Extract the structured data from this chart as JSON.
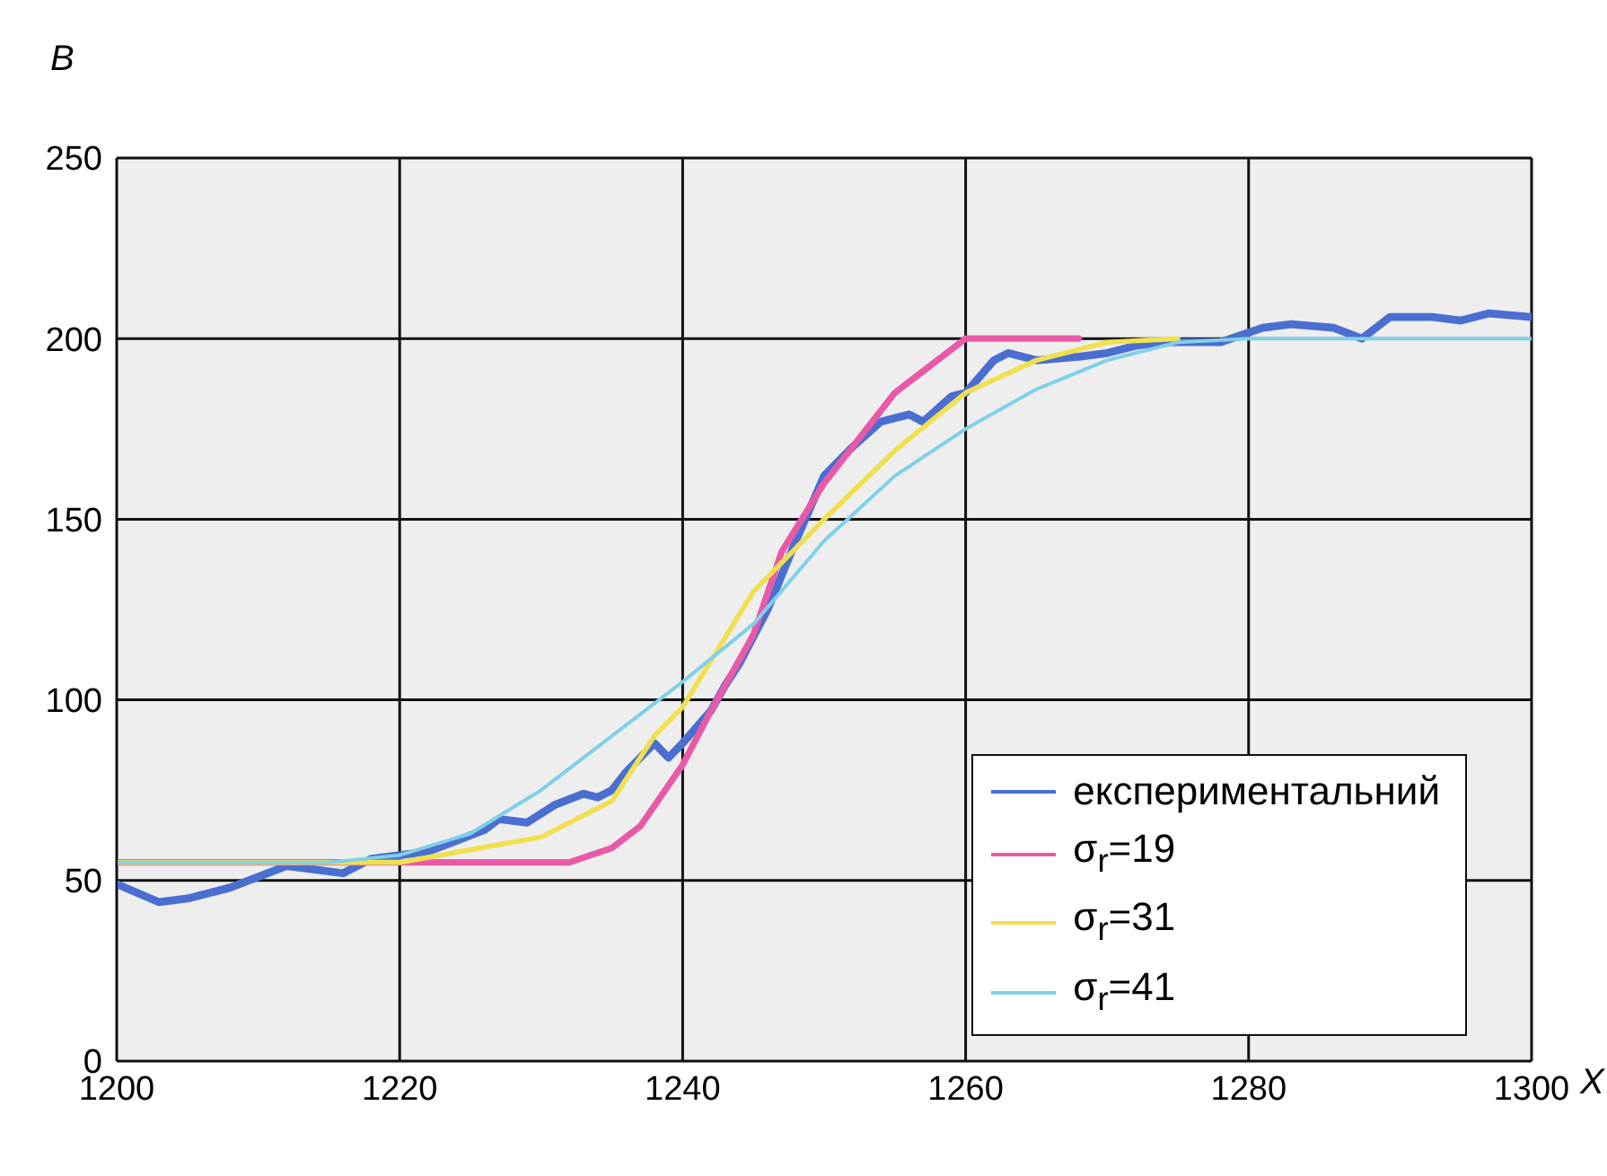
{
  "chart_data": {
    "type": "line",
    "xlabel": "X",
    "ylabel": "B",
    "xlim": [
      1200,
      1300
    ],
    "xticks": [
      1200,
      1220,
      1240,
      1260,
      1280,
      1300
    ],
    "ylim": [
      0,
      250
    ],
    "yticks": [
      0,
      50,
      100,
      150,
      200,
      250
    ],
    "grid": true,
    "legend": "bottom right",
    "line_style": "solid",
    "marker": "none",
    "series": [
      {
        "name": "експериментальний",
        "color": "#4a6fd0",
        "x": [
          1200,
          1203,
          1205,
          1208,
          1212,
          1214,
          1216,
          1218,
          1220,
          1222,
          1224,
          1226,
          1227,
          1229,
          1231,
          1233,
          1234,
          1235,
          1236,
          1237,
          1238,
          1239,
          1240,
          1242,
          1243,
          1244,
          1246,
          1248,
          1250,
          1252,
          1254,
          1256,
          1257,
          1259,
          1260,
          1262,
          1263,
          1265,
          1268,
          1270,
          1272,
          1274,
          1278,
          1281,
          1283,
          1286,
          1288,
          1290,
          1293,
          1295,
          1297,
          1300
        ],
        "values": [
          49,
          44,
          45,
          48,
          54,
          53,
          52,
          56,
          57,
          58,
          61,
          64,
          67,
          66,
          71,
          74,
          73,
          75,
          80,
          84,
          88,
          84,
          88,
          97,
          104,
          110,
          125,
          144,
          162,
          170,
          177,
          179,
          177,
          184,
          185,
          194,
          196,
          194,
          195,
          196,
          198,
          199,
          199,
          203,
          204,
          203,
          200,
          206,
          206,
          205,
          207,
          206
        ]
      },
      {
        "name": "σ$_{r}$=19",
        "color": "#e85aa8",
        "x": [
          1200,
          1220,
          1232,
          1235,
          1237,
          1240,
          1242,
          1245,
          1247,
          1250,
          1255,
          1260,
          1268
        ],
        "values": [
          55,
          55,
          55,
          59,
          65,
          82,
          97,
          118,
          141,
          160,
          185,
          200,
          200
        ]
      },
      {
        "name": "σ$_{r}$=31",
        "color": "#f0e050",
        "x": [
          1200,
          1213,
          1220,
          1230,
          1235,
          1238,
          1240,
          1245,
          1250,
          1255,
          1260,
          1265,
          1270,
          1275
        ],
        "values": [
          55,
          55,
          55,
          62,
          72,
          90,
          98,
          130,
          150,
          169,
          185,
          194,
          199,
          200
        ]
      },
      {
        "name": "σ$_{r}$=41",
        "color": "#7fd0e8",
        "x": [
          1200,
          1215,
          1220,
          1225,
          1230,
          1240,
          1245,
          1250,
          1255,
          1260,
          1265,
          1270,
          1275,
          1280,
          1300
        ],
        "values": [
          55,
          55,
          57,
          63,
          75,
          105,
          121,
          144,
          162,
          175,
          186,
          194,
          199,
          200,
          200
        ]
      }
    ]
  }
}
